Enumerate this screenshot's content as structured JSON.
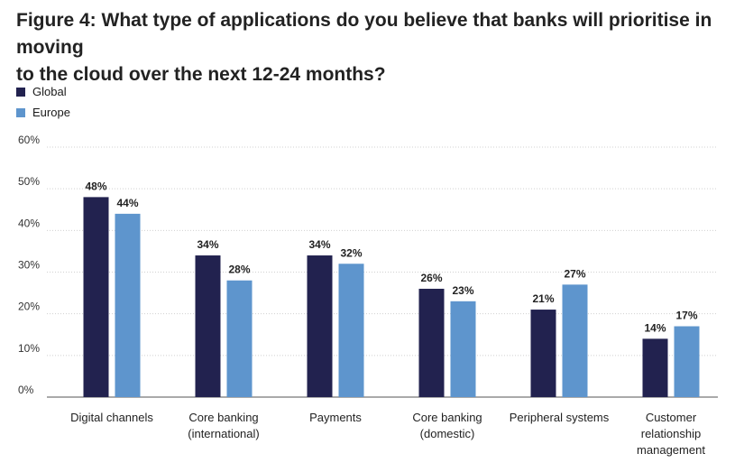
{
  "title_lines": [
    "Figure 4: What type of applications do you believe that banks will prioritise in moving",
    "to the cloud over the next 12-24 months?"
  ],
  "colors": {
    "global": "#22224f",
    "europe": "#5e95cd",
    "grid": "#d0d0d0",
    "axis": "#555555"
  },
  "chart_data": {
    "type": "bar",
    "title": "Figure 4: What type of applications do you believe that banks will prioritise in moving to the cloud over the next 12-24 months?",
    "categories": [
      [
        "Digital channels"
      ],
      [
        "Core banking",
        "(international)"
      ],
      [
        "Payments"
      ],
      [
        "Core banking",
        "(domestic)"
      ],
      [
        "Peripheral systems"
      ],
      [
        "Customer",
        "relationship",
        "management"
      ]
    ],
    "series": [
      {
        "name": "Global",
        "values": [
          48,
          34,
          34,
          26,
          21,
          14
        ],
        "labels": [
          "48%",
          "34%",
          "34%",
          "26%",
          "21%",
          "14%"
        ]
      },
      {
        "name": "Europe",
        "values": [
          44,
          28,
          32,
          23,
          27,
          17
        ],
        "labels": [
          "44%",
          "28%",
          "32%",
          "23%",
          "27%",
          "17%"
        ]
      }
    ],
    "ylim": [
      0,
      60
    ],
    "yticks": [
      {
        "value": 0,
        "label": "0%"
      },
      {
        "value": 10,
        "label": "10%"
      },
      {
        "value": 20,
        "label": "20%"
      },
      {
        "value": 30,
        "label": "30%"
      },
      {
        "value": 40,
        "label": "40%"
      },
      {
        "value": 50,
        "label": "50%"
      },
      {
        "value": 60,
        "label": "60%"
      }
    ],
    "grid": true,
    "legend_position": "top-left"
  }
}
